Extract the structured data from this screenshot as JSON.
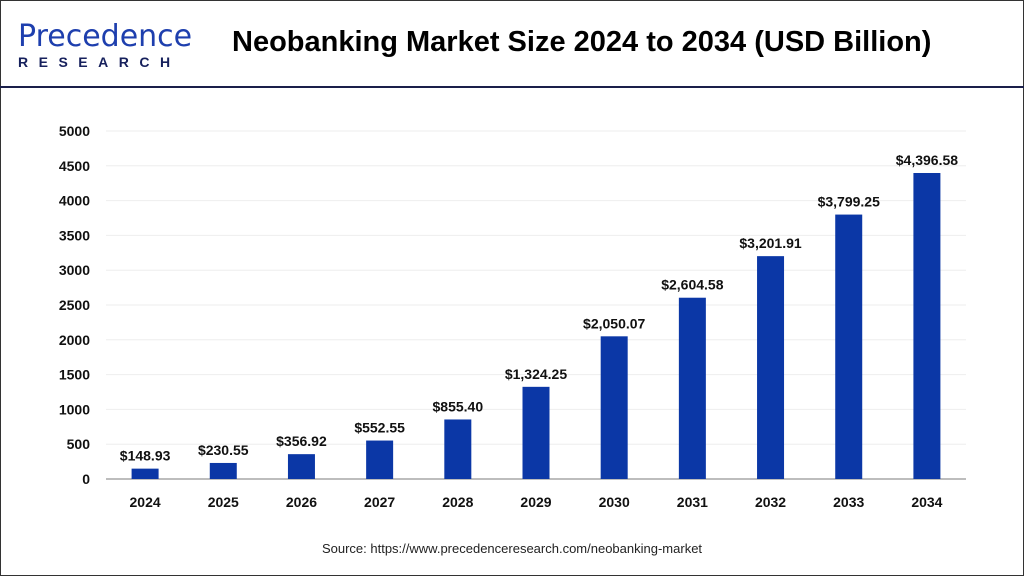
{
  "header": {
    "logo_text_main": "Precedence",
    "logo_text_sub": "RESEARCH",
    "title": "Neobanking Market Size 2024 to 2034 (USD Billion)"
  },
  "chart_data": {
    "type": "bar",
    "title": "Neobanking Market Size 2024 to 2034 (USD Billion)",
    "categories": [
      "2024",
      "2025",
      "2026",
      "2027",
      "2028",
      "2029",
      "2030",
      "2031",
      "2032",
      "2033",
      "2034"
    ],
    "values": [
      148.93,
      230.55,
      356.92,
      552.55,
      855.4,
      1324.25,
      2050.07,
      2604.58,
      3201.91,
      3799.25,
      4396.58
    ],
    "data_labels": [
      "$148.93",
      "$230.55",
      "$356.92",
      "$552.55",
      "$855.40",
      "$1,324.25",
      "$2,050.07",
      "$2,604.58",
      "$3,201.91",
      "$3,799.25",
      "$4,396.58"
    ],
    "ylim": [
      0,
      5000
    ],
    "yticks": [
      0,
      500,
      1000,
      1500,
      2000,
      2500,
      3000,
      3500,
      4000,
      4500,
      5000
    ],
    "xlabel": "",
    "ylabel": "",
    "grid": true,
    "bar_color": "#0b37a6"
  },
  "footer": {
    "source": "Source: https://www.precedenceresearch.com/neobanking-market"
  }
}
